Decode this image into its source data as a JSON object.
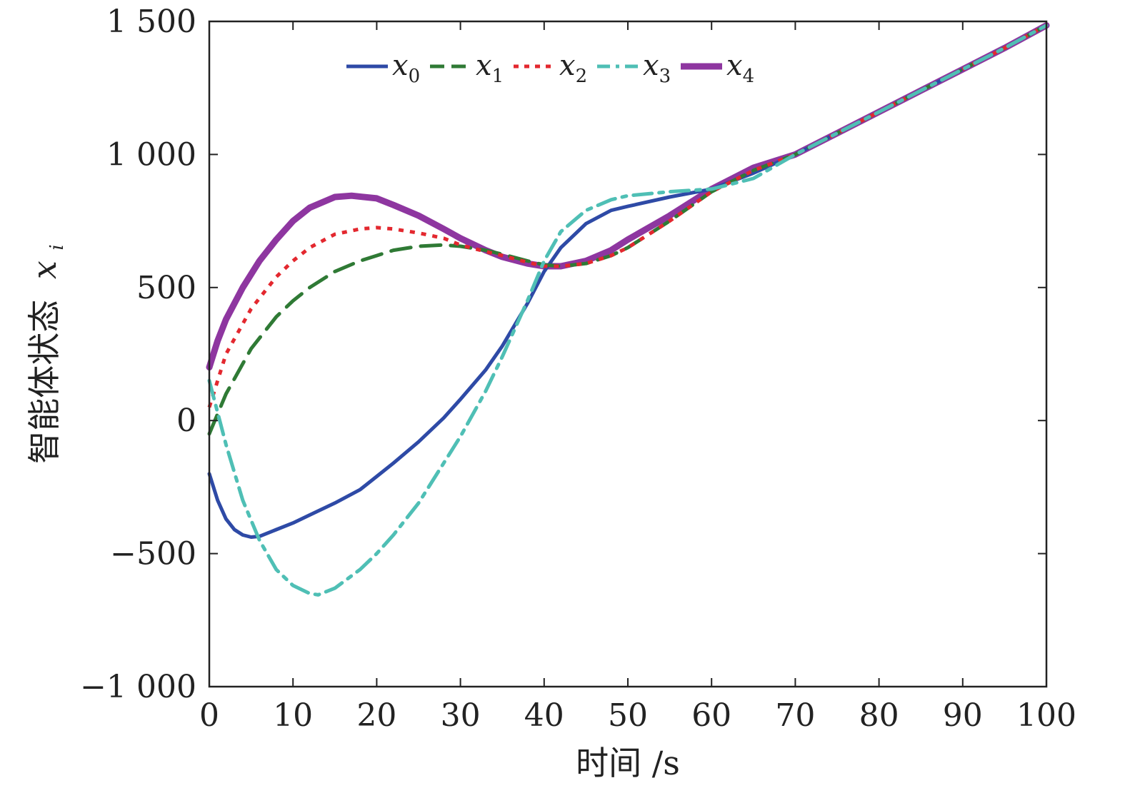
{
  "chart_data": {
    "type": "line",
    "xlabel": "时间 /s",
    "ylabel": "智能体状态",
    "ylabel_var": "x",
    "ylabel_sub": "i",
    "xlim": [
      0,
      100
    ],
    "ylim": [
      -1000,
      1500
    ],
    "xticks": [
      0,
      10,
      20,
      30,
      40,
      50,
      60,
      70,
      80,
      90,
      100
    ],
    "xtick_labels": [
      "0",
      "10",
      "20",
      "30",
      "40",
      "50",
      "60",
      "70",
      "80",
      "90",
      "100"
    ],
    "yticks": [
      -1000,
      -500,
      0,
      500,
      1000,
      1500
    ],
    "ytick_labels": [
      "−1 000",
      "−500",
      "0",
      "500",
      "1 000",
      "1 500"
    ],
    "grid": false,
    "legend_position": "top-center",
    "series": [
      {
        "name": "x",
        "name_sub": "0",
        "color": "#2e4aa6",
        "style": "solid",
        "width": 5,
        "x": [
          0,
          1,
          2,
          3,
          4,
          5,
          6,
          8,
          10,
          12,
          15,
          18,
          20,
          22,
          25,
          28,
          30,
          33,
          35,
          38,
          40,
          42,
          45,
          48,
          50,
          55,
          60,
          65,
          70,
          75,
          80,
          85,
          90,
          95,
          100
        ],
        "y": [
          -200,
          -300,
          -370,
          -410,
          -430,
          -438,
          -435,
          -410,
          -385,
          -355,
          -310,
          -260,
          -210,
          -160,
          -80,
          10,
          80,
          190,
          280,
          440,
          560,
          650,
          740,
          790,
          805,
          840,
          870,
          930,
          1000,
          1080,
          1160,
          1240,
          1320,
          1400,
          1485
        ]
      },
      {
        "name": "x",
        "name_sub": "1",
        "color": "#2f7a35",
        "style": "dashed",
        "width": 5,
        "x": [
          0,
          2,
          5,
          8,
          10,
          12,
          15,
          18,
          20,
          22,
          25,
          28,
          30,
          33,
          35,
          38,
          40,
          42,
          45,
          48,
          50,
          55,
          60,
          65,
          70,
          75,
          80,
          85,
          90,
          95,
          100
        ],
        "y": [
          -50,
          100,
          270,
          390,
          450,
          500,
          560,
          600,
          620,
          640,
          655,
          660,
          655,
          640,
          625,
          600,
          585,
          580,
          590,
          620,
          650,
          750,
          860,
          940,
          1000,
          1080,
          1160,
          1240,
          1320,
          1400,
          1485
        ]
      },
      {
        "name": "x",
        "name_sub": "2",
        "color": "#e3282f",
        "style": "dotted",
        "width": 5,
        "x": [
          0,
          2,
          5,
          8,
          10,
          12,
          15,
          18,
          20,
          22,
          25,
          28,
          30,
          33,
          35,
          38,
          40,
          42,
          45,
          48,
          50,
          55,
          60,
          65,
          70,
          75,
          80,
          85,
          90,
          95,
          100
        ],
        "y": [
          50,
          250,
          420,
          540,
          600,
          650,
          700,
          720,
          725,
          720,
          705,
          685,
          660,
          635,
          620,
          595,
          580,
          580,
          590,
          620,
          650,
          750,
          860,
          940,
          1000,
          1080,
          1160,
          1240,
          1320,
          1400,
          1485
        ]
      },
      {
        "name": "x",
        "name_sub": "3",
        "color": "#4fbfb5",
        "style": "dashdot",
        "width": 5,
        "x": [
          0,
          2,
          4,
          6,
          8,
          10,
          12,
          13,
          15,
          18,
          20,
          22,
          25,
          28,
          30,
          33,
          35,
          38,
          40,
          42,
          45,
          48,
          50,
          55,
          60,
          65,
          70,
          75,
          80,
          85,
          90,
          95,
          100
        ],
        "y": [
          150,
          -90,
          -300,
          -450,
          -560,
          -620,
          -650,
          -655,
          -630,
          -560,
          -500,
          -430,
          -310,
          -160,
          -60,
          110,
          240,
          450,
          600,
          710,
          790,
          830,
          845,
          860,
          870,
          910,
          1000,
          1080,
          1160,
          1240,
          1320,
          1400,
          1485
        ]
      },
      {
        "name": "x",
        "name_sub": "4",
        "color": "#8e36a0",
        "style": "solid",
        "width": 9,
        "x": [
          0,
          1,
          2,
          4,
          6,
          8,
          10,
          12,
          15,
          17,
          20,
          22,
          25,
          28,
          30,
          33,
          35,
          38,
          40,
          42,
          45,
          48,
          50,
          55,
          60,
          65,
          70,
          75,
          80,
          85,
          90,
          95,
          100
        ],
        "y": [
          200,
          300,
          380,
          500,
          600,
          680,
          750,
          800,
          840,
          845,
          835,
          810,
          770,
          720,
          685,
          640,
          615,
          590,
          580,
          580,
          600,
          640,
          680,
          770,
          870,
          950,
          1000,
          1080,
          1160,
          1240,
          1320,
          1400,
          1485
        ]
      }
    ]
  }
}
